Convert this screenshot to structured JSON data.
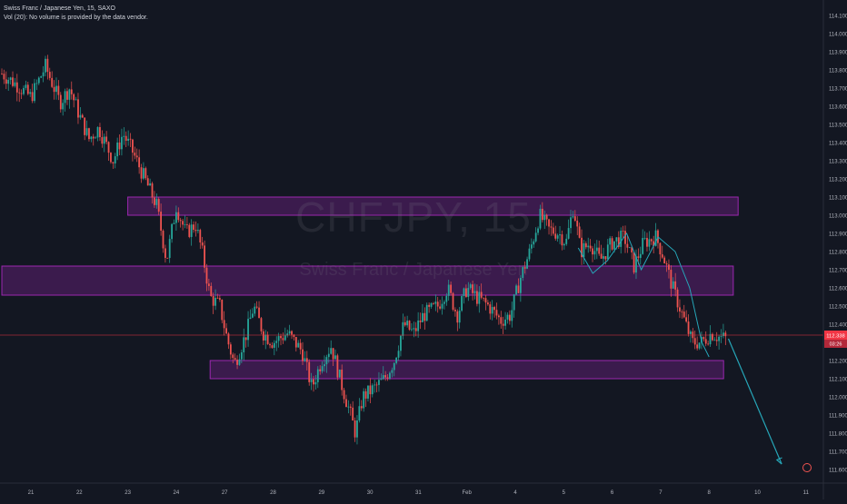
{
  "legend": {
    "symbol_line": "Swiss Franc / Japanese Yen, 15, SAXO",
    "volume_line": "Vol (20): No volume is provided by the data vendor."
  },
  "watermark": {
    "symbol": "CHFJPY, 15",
    "name": "Swiss Franc / Japanese Yen"
  },
  "chart_data": {
    "type": "candlestick",
    "symbol": "CHFJPY",
    "timeframe": "15",
    "ylim": [
      111.55,
      114.2
    ],
    "y_ticks": [
      "114.100",
      "114.000",
      "113.900",
      "113.800",
      "113.700",
      "113.600",
      "113.500",
      "113.400",
      "113.300",
      "113.200",
      "113.100",
      "113.000",
      "112.900",
      "112.800",
      "112.700",
      "112.600",
      "112.500",
      "112.400",
      "112.300",
      "112.200",
      "112.100",
      "112.000",
      "111.900",
      "111.800",
      "111.700",
      "111.600"
    ],
    "x_ticks": [
      {
        "label": "21",
        "t": 0.0
      },
      {
        "label": "22",
        "t": 1.0
      },
      {
        "label": "23",
        "t": 2.0
      },
      {
        "label": "24",
        "t": 3.0
      },
      {
        "label": "27",
        "t": 4.0
      },
      {
        "label": "28",
        "t": 5.0
      },
      {
        "label": "29",
        "t": 6.0
      },
      {
        "label": "30",
        "t": 7.0
      },
      {
        "label": "31",
        "t": 8.0
      },
      {
        "label": "Feb",
        "t": 9.0
      },
      {
        "label": "4",
        "t": 10.0
      },
      {
        "label": "5",
        "t": 11.0
      },
      {
        "label": "6",
        "t": 12.0
      },
      {
        "label": "7",
        "t": 13.0
      },
      {
        "label": "8",
        "t": 14.0
      },
      {
        "label": "10",
        "t": 15.0
      },
      {
        "label": "11",
        "t": 16.0
      },
      {
        "label": "12",
        "t": 17.0
      }
    ],
    "price_path": [
      [
        -0.6,
        113.78
      ],
      [
        -0.3,
        113.72
      ],
      [
        0.0,
        113.65
      ],
      [
        0.3,
        113.82
      ],
      [
        0.6,
        113.62
      ],
      [
        0.8,
        113.7
      ],
      [
        1.0,
        113.55
      ],
      [
        1.2,
        113.42
      ],
      [
        1.4,
        113.48
      ],
      [
        1.7,
        113.3
      ],
      [
        1.9,
        113.45
      ],
      [
        2.1,
        113.35
      ],
      [
        2.35,
        113.2
      ],
      [
        2.6,
        113.05
      ],
      [
        2.8,
        112.75
      ],
      [
        3.0,
        113.05
      ],
      [
        3.2,
        112.9
      ],
      [
        3.4,
        112.95
      ],
      [
        3.55,
        112.78
      ],
      [
        3.7,
        112.55
      ],
      [
        3.9,
        112.5
      ],
      [
        4.05,
        112.32
      ],
      [
        4.2,
        112.18
      ],
      [
        4.45,
        112.35
      ],
      [
        4.6,
        112.5
      ],
      [
        4.8,
        112.35
      ],
      [
        5.0,
        112.3
      ],
      [
        5.3,
        112.35
      ],
      [
        5.6,
        112.25
      ],
      [
        5.8,
        112.05
      ],
      [
        6.0,
        112.2
      ],
      [
        6.2,
        112.28
      ],
      [
        6.4,
        112.08
      ],
      [
        6.6,
        111.9
      ],
      [
        6.7,
        111.8
      ],
      [
        6.85,
        112.0
      ],
      [
        7.1,
        112.05
      ],
      [
        7.3,
        112.1
      ],
      [
        7.5,
        112.2
      ],
      [
        7.7,
        112.4
      ],
      [
        7.9,
        112.35
      ],
      [
        8.1,
        112.45
      ],
      [
        8.4,
        112.5
      ],
      [
        8.6,
        112.6
      ],
      [
        8.8,
        112.45
      ],
      [
        9.0,
        112.6
      ],
      [
        9.2,
        112.55
      ],
      [
        9.45,
        112.5
      ],
      [
        9.7,
        112.42
      ],
      [
        9.9,
        112.45
      ],
      [
        10.1,
        112.65
      ],
      [
        10.3,
        112.8
      ],
      [
        10.5,
        113.0
      ],
      [
        10.7,
        112.92
      ],
      [
        10.9,
        112.9
      ],
      [
        11.05,
        112.85
      ],
      [
        11.2,
        113.05
      ],
      [
        11.35,
        112.8
      ],
      [
        11.55,
        112.85
      ],
      [
        11.75,
        112.75
      ],
      [
        12.0,
        112.85
      ],
      [
        12.25,
        112.88
      ],
      [
        12.45,
        112.72
      ],
      [
        12.65,
        112.85
      ],
      [
        12.9,
        112.88
      ],
      [
        13.05,
        112.78
      ],
      [
        13.25,
        112.6
      ],
      [
        13.45,
        112.45
      ],
      [
        13.65,
        112.3
      ],
      [
        13.85,
        112.3
      ],
      [
        14.05,
        112.35
      ],
      [
        14.2,
        112.33
      ],
      [
        14.35,
        112.32
      ]
    ],
    "annotations": {
      "resistance_boxes": [
        {
          "t0": 2.0,
          "t1": 14.6,
          "p0": 113.0,
          "p1": 113.1
        },
        {
          "t0": -0.6,
          "t1": 14.5,
          "p0": 112.56,
          "p1": 112.72
        },
        {
          "t0": 3.7,
          "t1": 14.3,
          "p0": 112.1,
          "p1": 112.2
        }
      ],
      "current_price_line": 112.34,
      "current_price_label": "112.338",
      "countdown_label": "03:26",
      "projection_arrow": [
        [
          14.4,
          112.32
        ],
        [
          15.5,
          111.63
        ]
      ],
      "wave_path": [
        [
          11.3,
          112.82
        ],
        [
          11.6,
          112.68
        ],
        [
          11.9,
          112.75
        ],
        [
          12.3,
          112.9
        ],
        [
          12.6,
          112.7
        ],
        [
          12.95,
          112.88
        ],
        [
          13.3,
          112.8
        ],
        [
          13.6,
          112.6
        ],
        [
          13.85,
          112.3
        ],
        [
          14.0,
          112.22
        ]
      ]
    },
    "colors": {
      "background": "#131722",
      "bull": "#26a69a",
      "bear": "#ef5350",
      "box_fill": "#4a1d5c",
      "box_stroke": "#9c27b0",
      "price_line": "#f23645",
      "arrow": "#26a6b8",
      "axis_text": "#b2b5be"
    }
  }
}
